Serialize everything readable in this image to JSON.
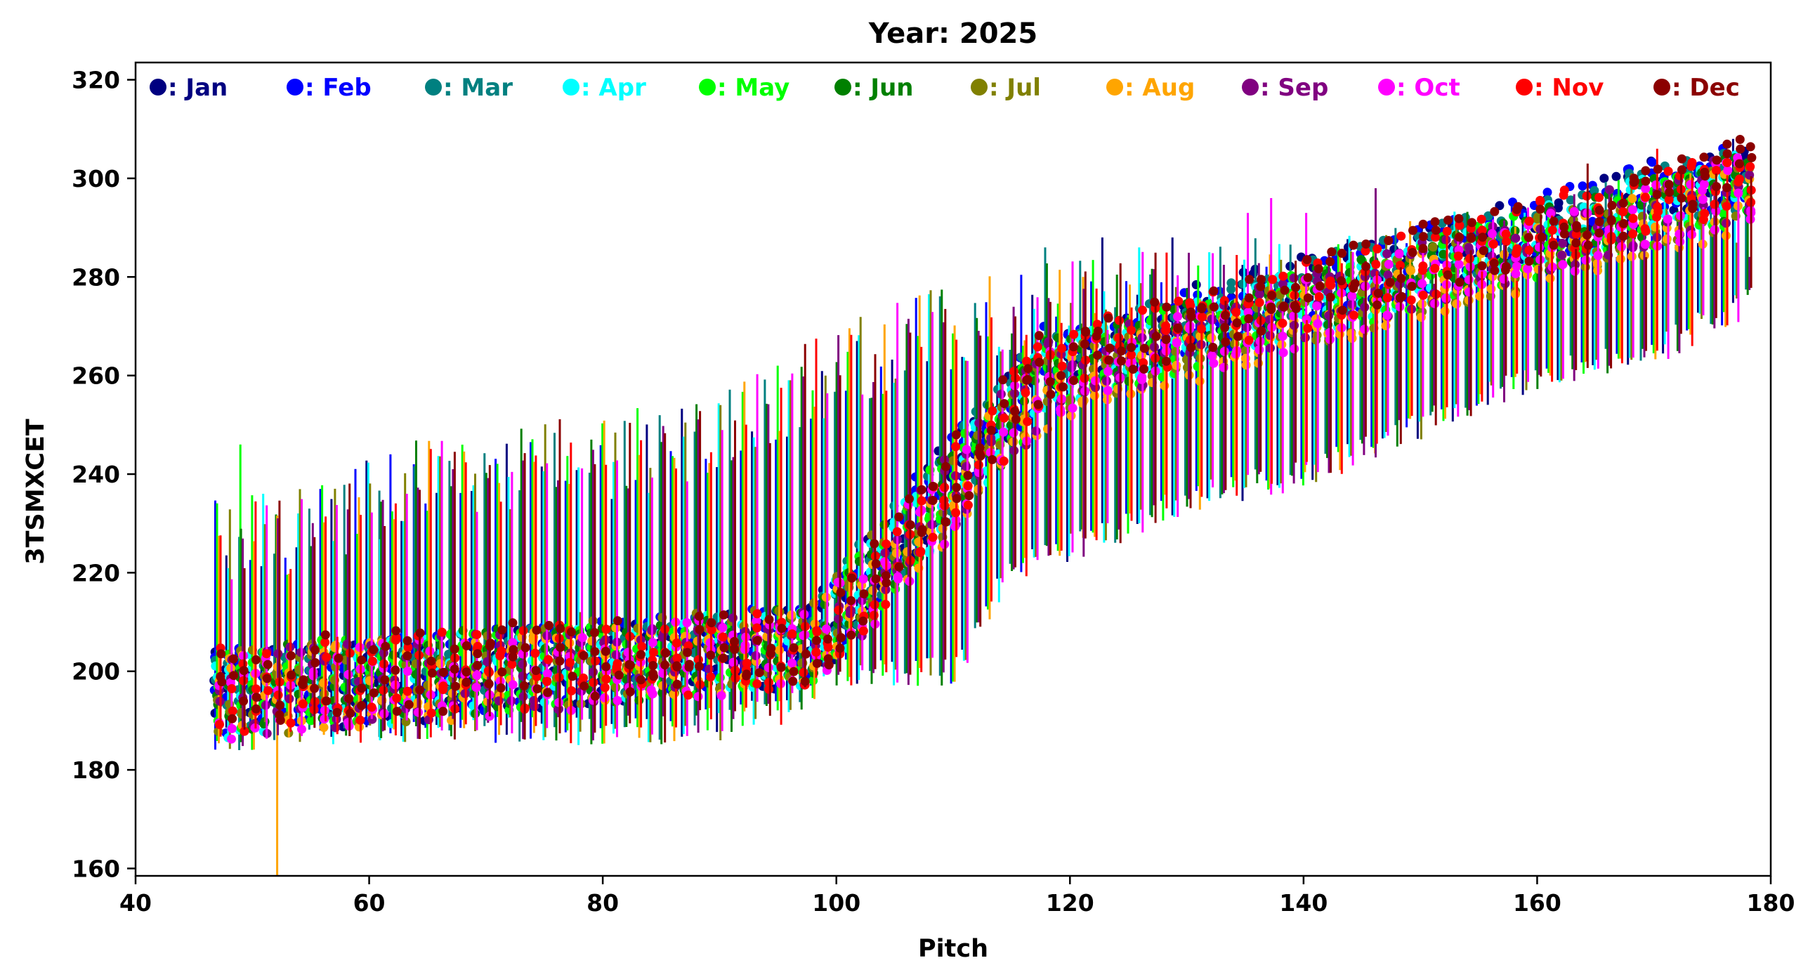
{
  "chart_data": {
    "type": "scatter",
    "title": "Year: 2025",
    "xlabel": "Pitch",
    "ylabel": "3TSMXCET",
    "xlim": [
      40,
      180
    ],
    "ylim": [
      158.5,
      323.5
    ],
    "xticks": [
      "40",
      "60",
      "80",
      "100",
      "120",
      "140",
      "160",
      "180"
    ],
    "yticks": [
      "160",
      "180",
      "200",
      "220",
      "240",
      "260",
      "280",
      "300",
      "320"
    ],
    "grid": false,
    "legend_position": "top, inside plot",
    "error_bars": true,
    "series": [
      {
        "name": ": Jan",
        "color": "#000080",
        "offset": -0.45,
        "segments": [
          {
            "x": [
              47,
              98
            ],
            "mean": [
              195,
              205
            ],
            "spread": [
              9,
              8
            ]
          },
          {
            "x": [
              98,
              118
            ],
            "mean": [
              205,
              263
            ],
            "spread": [
              9,
              8
            ]
          },
          {
            "x": [
              118,
              178
            ],
            "mean": [
              263,
              302
            ],
            "spread": [
              7,
              7
            ]
          }
        ],
        "peaks": [
          [
            123,
            288
          ],
          [
            129,
            288
          ],
          [
            177,
            308
          ]
        ]
      },
      {
        "name": ": Feb",
        "color": "#0000ff",
        "offset": -0.35,
        "segments": [
          {
            "x": [
              47,
              98
            ],
            "mean": [
              196,
              206
            ],
            "spread": [
              9,
              8
            ]
          },
          {
            "x": [
              98,
              118
            ],
            "mean": [
              206,
              262
            ],
            "spread": [
              9,
              8
            ]
          },
          {
            "x": [
              118,
              178
            ],
            "mean": [
              262,
              302
            ],
            "spread": [
              7,
              7
            ]
          }
        ],
        "peaks": [
          [
            62,
            244
          ],
          [
            64,
            242
          ]
        ]
      },
      {
        "name": ": Mar",
        "color": "#008080",
        "offset": -0.25,
        "segments": [
          {
            "x": [
              47,
              98
            ],
            "mean": [
              196,
              206
            ],
            "spread": [
              8,
              7
            ]
          },
          {
            "x": [
              98,
              118
            ],
            "mean": [
              206,
              262
            ],
            "spread": [
              9,
              8
            ]
          },
          {
            "x": [
              118,
              178
            ],
            "mean": [
              262,
              301
            ],
            "spread": [
              7,
              7
            ]
          }
        ],
        "peaks": [
          [
            118,
            286
          ]
        ]
      },
      {
        "name": ": Apr",
        "color": "#00ffff",
        "offset": -0.15,
        "segments": [
          {
            "x": [
              47,
              98
            ],
            "mean": [
              195,
              205
            ],
            "spread": [
              9,
              8
            ]
          },
          {
            "x": [
              98,
              118
            ],
            "mean": [
              205,
              260
            ],
            "spread": [
              9,
              8
            ]
          },
          {
            "x": [
              118,
              178
            ],
            "mean": [
              260,
              299
            ],
            "spread": [
              7,
              7
            ]
          }
        ],
        "peaks": [
          [
            126,
            286
          ],
          [
            61,
            186
          ]
        ]
      },
      {
        "name": ": May",
        "color": "#00ff00",
        "offset": -0.05,
        "segments": [
          {
            "x": [
              47,
              98
            ],
            "mean": [
              196,
              205
            ],
            "spread": [
              9,
              8
            ]
          },
          {
            "x": [
              98,
              118
            ],
            "mean": [
              205,
              260
            ],
            "spread": [
              9,
              8
            ]
          },
          {
            "x": [
              118,
              178
            ],
            "mean": [
              260,
              298
            ],
            "spread": [
              7,
              7
            ]
          }
        ],
        "peaks": [
          [
            49,
            246
          ]
        ]
      },
      {
        "name": ": Jun",
        "color": "#008000",
        "offset": 0.05,
        "segments": [
          {
            "x": [
              47,
              98
            ],
            "mean": [
              196,
              205
            ],
            "spread": [
              9,
              8
            ]
          },
          {
            "x": [
              98,
              118
            ],
            "mean": [
              205,
              260
            ],
            "spread": [
              9,
              8
            ]
          },
          {
            "x": [
              118,
              178
            ],
            "mean": [
              260,
              299
            ],
            "spread": [
              7,
              7
            ]
          }
        ],
        "peaks": []
      },
      {
        "name": ": Jul",
        "color": "#808000",
        "offset": 0.15,
        "segments": [
          {
            "x": [
              47,
              98
            ],
            "mean": [
              195,
              206
            ],
            "spread": [
              9,
              8
            ]
          },
          {
            "x": [
              98,
              118
            ],
            "mean": [
              206,
              258
            ],
            "spread": [
              9,
              8
            ]
          },
          {
            "x": [
              118,
              178
            ],
            "mean": [
              258,
              297
            ],
            "spread": [
              7,
              7
            ]
          }
        ],
        "peaks": [
          [
            90,
            186
          ],
          [
            78,
            212
          ]
        ]
      },
      {
        "name": ": Aug",
        "color": "#ffa500",
        "offset": 0.25,
        "segments": [
          {
            "x": [
              47,
              98
            ],
            "mean": [
              195,
              204
            ],
            "spread": [
              9,
              8
            ]
          },
          {
            "x": [
              98,
              118
            ],
            "mean": [
              204,
              257
            ],
            "spread": [
              9,
              8
            ]
          },
          {
            "x": [
              118,
              178
            ],
            "mean": [
              257,
              296
            ],
            "spread": [
              7,
              7
            ]
          }
        ],
        "peaks": [
          [
            52,
            158
          ],
          [
            121,
            280
          ]
        ]
      },
      {
        "name": ": Sep",
        "color": "#800080",
        "offset": 0.35,
        "segments": [
          {
            "x": [
              47,
              98
            ],
            "mean": [
              195,
              205
            ],
            "spread": [
              9,
              8
            ]
          },
          {
            "x": [
              98,
              118
            ],
            "mean": [
              205,
              259
            ],
            "spread": [
              9,
              8
            ]
          },
          {
            "x": [
              118,
              178
            ],
            "mean": [
              259,
              299
            ],
            "spread": [
              7,
              7
            ]
          }
        ],
        "peaks": [
          [
            146,
            298
          ]
        ]
      },
      {
        "name": ": Oct",
        "color": "#ff00ff",
        "offset": 0.45,
        "segments": [
          {
            "x": [
              47,
              98
            ],
            "mean": [
              195,
              204
            ],
            "spread": [
              9,
              8
            ]
          },
          {
            "x": [
              98,
              118
            ],
            "mean": [
              204,
              258
            ],
            "spread": [
              9,
              8
            ]
          },
          {
            "x": [
              118,
              178
            ],
            "mean": [
              258,
              298
            ],
            "spread": [
              7,
              7
            ]
          }
        ],
        "peaks": [
          [
            135,
            293
          ],
          [
            137,
            296
          ],
          [
            140,
            293
          ]
        ]
      },
      {
        "name": ": Nov",
        "color": "#ff0000",
        "offset": 0.55,
        "segments": [
          {
            "x": [
              47,
              98
            ],
            "mean": [
              196,
              205
            ],
            "spread": [
              9,
              8
            ]
          },
          {
            "x": [
              98,
              118
            ],
            "mean": [
              205,
              262
            ],
            "spread": [
              9,
              8
            ]
          },
          {
            "x": [
              118,
              178
            ],
            "mean": [
              262,
              301
            ],
            "spread": [
              7,
              7
            ]
          }
        ],
        "peaks": [
          [
            170,
            306
          ],
          [
            57,
            207
          ]
        ]
      },
      {
        "name": ": Dec",
        "color": "#8b0000",
        "offset": 0.65,
        "segments": [
          {
            "x": [
              47,
              98
            ],
            "mean": [
              197,
              206
            ],
            "spread": [
              9,
              8
            ]
          },
          {
            "x": [
              98,
              118
            ],
            "mean": [
              206,
              263
            ],
            "spread": [
              9,
              8
            ]
          },
          {
            "x": [
              118,
              178
            ],
            "mean": [
              263,
              302
            ],
            "spread": [
              7,
              7
            ]
          }
        ],
        "peaks": [
          [
            164,
            303
          ]
        ]
      }
    ],
    "whisker_envelope": {
      "note": "vertical error bars per point",
      "x": [
        47,
        55,
        65,
        75,
        85,
        90,
        95,
        100,
        105,
        110,
        115,
        120,
        125,
        130,
        140,
        150,
        160,
        170,
        178
      ],
      "low": [
        186,
        188,
        188,
        188,
        188,
        190,
        192,
        200,
        200,
        200,
        220,
        225,
        230,
        235,
        240,
        250,
        260,
        265,
        275
      ],
      "high": [
        236,
        238,
        248,
        251,
        254,
        256,
        264,
        270,
        275,
        279,
        282,
        285,
        287,
        288,
        288,
        292,
        298,
        302,
        302
      ]
    }
  }
}
